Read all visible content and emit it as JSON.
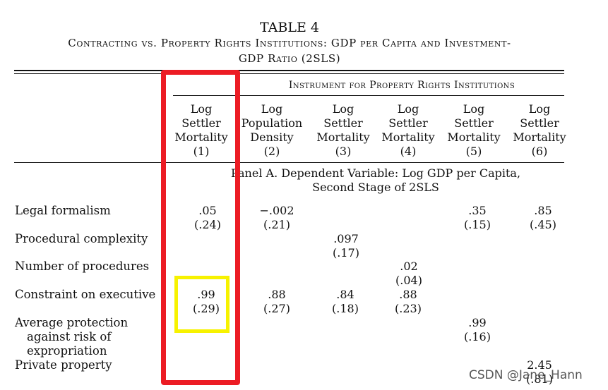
{
  "table": {
    "title": "TABLE 4",
    "subtitle_line1": "Contracting vs. Property Rights Institutions: GDP per Capita and Investment-",
    "subtitle_line2": "GDP Ratio (2SLS)",
    "instrument_header": "Instrument for Property Rights Institutions",
    "columns": [
      {
        "l1": "Log",
        "l2": "Settler",
        "l3": "Mortality",
        "num": "(1)"
      },
      {
        "l1": "Log",
        "l2": "Population",
        "l3": "Density",
        "num": "(2)"
      },
      {
        "l1": "Log",
        "l2": "Settler",
        "l3": "Mortality",
        "num": "(3)"
      },
      {
        "l1": "Log",
        "l2": "Settler",
        "l3": "Mortality",
        "num": "(4)"
      },
      {
        "l1": "Log",
        "l2": "Settler",
        "l3": "Mortality",
        "num": "(5)"
      },
      {
        "l1": "Log",
        "l2": "Settler",
        "l3": "Mortality",
        "num": "(6)"
      }
    ],
    "panel_a": {
      "line1": "Panel A. Dependent Variable: Log GDP per Capita,",
      "line2": "Second Stage of 2SLS"
    },
    "rows": [
      {
        "label": "Legal formalism",
        "cells": [
          {
            "coef": ".05",
            "se": "(.24)"
          },
          {
            "coef": "−.002",
            "se": "(.21)"
          },
          {
            "coef": "",
            "se": ""
          },
          {
            "coef": "",
            "se": ""
          },
          {
            "coef": ".35",
            "se": "(.15)"
          },
          {
            "coef": ".85",
            "se": "(.45)"
          }
        ]
      },
      {
        "label": "Procedural complexity",
        "cells": [
          {
            "coef": "",
            "se": ""
          },
          {
            "coef": "",
            "se": ""
          },
          {
            "coef": ".097",
            "se": "(.17)"
          },
          {
            "coef": "",
            "se": ""
          },
          {
            "coef": "",
            "se": ""
          },
          {
            "coef": "",
            "se": ""
          }
        ]
      },
      {
        "label": "Number of procedures",
        "cells": [
          {
            "coef": "",
            "se": ""
          },
          {
            "coef": "",
            "se": ""
          },
          {
            "coef": "",
            "se": ""
          },
          {
            "coef": ".02",
            "se": "(.04)"
          },
          {
            "coef": "",
            "se": ""
          },
          {
            "coef": "",
            "se": ""
          }
        ]
      },
      {
        "label": "Constraint on executive",
        "cells": [
          {
            "coef": ".99",
            "se": "(.29)"
          },
          {
            "coef": ".88",
            "se": "(.27)"
          },
          {
            "coef": ".84",
            "se": "(.18)"
          },
          {
            "coef": ".88",
            "se": "(.23)"
          },
          {
            "coef": "",
            "se": ""
          },
          {
            "coef": "",
            "se": ""
          }
        ]
      },
      {
        "label_lines": [
          "Average protection",
          "against risk of",
          "expropriation"
        ],
        "cells": [
          {
            "coef": "",
            "se": ""
          },
          {
            "coef": "",
            "se": ""
          },
          {
            "coef": "",
            "se": ""
          },
          {
            "coef": "",
            "se": ""
          },
          {
            "coef": ".99",
            "se": "(.16)"
          },
          {
            "coef": "",
            "se": ""
          }
        ]
      },
      {
        "label": "Private property",
        "cells": [
          {
            "coef": "",
            "se": ""
          },
          {
            "coef": "",
            "se": ""
          },
          {
            "coef": "",
            "se": ""
          },
          {
            "coef": "",
            "se": ""
          },
          {
            "coef": "",
            "se": ""
          },
          {
            "coef": "2.45",
            "se": "(.81)"
          }
        ]
      }
    ]
  },
  "watermark": "CSDN @Jane_Hann",
  "colors": {
    "highlight_red": "#ec1c24",
    "highlight_yellow": "#f7f200"
  }
}
